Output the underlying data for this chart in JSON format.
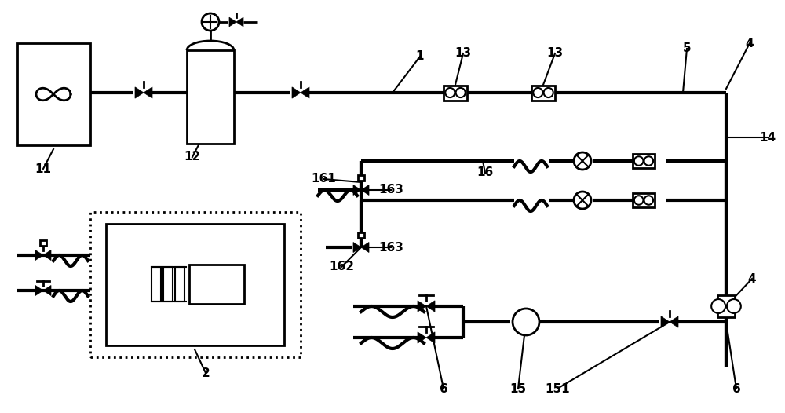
{
  "bg_color": "#ffffff",
  "lw_thick": 3.0,
  "lw_med": 2.0,
  "lw_thin": 1.5
}
